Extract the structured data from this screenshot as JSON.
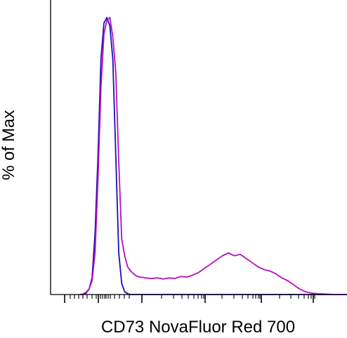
{
  "chart_data": {
    "type": "line",
    "title": "",
    "xlabel": "CD73 NovaFluor Red 700",
    "ylabel": "% of Max",
    "xscale": "logicle",
    "xlim": [
      0,
      100
    ],
    "ylim": [
      0,
      100
    ],
    "x_tick_labels_shown": false,
    "grid": false,
    "legend": "none",
    "series": [
      {
        "color": "#1a0fb4",
        "x": [
          10,
          11,
          12,
          13,
          14,
          15,
          16,
          17,
          18,
          19,
          20,
          21,
          22,
          23,
          24,
          25,
          26,
          27,
          28,
          29,
          30,
          31,
          32,
          34,
          38,
          45,
          55,
          65,
          80,
          100
        ],
        "y": [
          0,
          0,
          0.5,
          2,
          6,
          22,
          50,
          85,
          98,
          100,
          97,
          85,
          50,
          15,
          4,
          1,
          0.3,
          0,
          0,
          0,
          0,
          0,
          0,
          0,
          0,
          0,
          0,
          0,
          0,
          0
        ]
      },
      {
        "color": "#b50fbf",
        "x": [
          10,
          11,
          12,
          13,
          14,
          15,
          16,
          17,
          18,
          19,
          20,
          21,
          22,
          23,
          24,
          25,
          26,
          27,
          28,
          29,
          30,
          31,
          32,
          34,
          36,
          38,
          40,
          42,
          44,
          46,
          48,
          50,
          52,
          54,
          56,
          58,
          60,
          62,
          64,
          66,
          68,
          70,
          72,
          74,
          76,
          78,
          80,
          82,
          84,
          86,
          88,
          90,
          92,
          94,
          96,
          98,
          100
        ],
        "y": [
          0,
          0.2,
          0.8,
          2,
          5,
          15,
          42,
          75,
          94,
          99,
          100,
          93,
          80,
          48,
          20,
          14,
          10,
          8.5,
          7.5,
          6.7,
          6.3,
          6.2,
          6,
          5.8,
          6,
          5.6,
          6,
          5.8,
          6.5,
          6.3,
          7,
          8,
          9.5,
          11,
          12.5,
          14,
          15,
          14,
          14.5,
          13,
          11.5,
          10,
          9,
          8.5,
          7.5,
          6,
          5,
          3.5,
          2,
          1,
          0.5,
          0.3,
          0.2,
          0.1,
          0,
          0,
          0
        ]
      }
    ]
  }
}
